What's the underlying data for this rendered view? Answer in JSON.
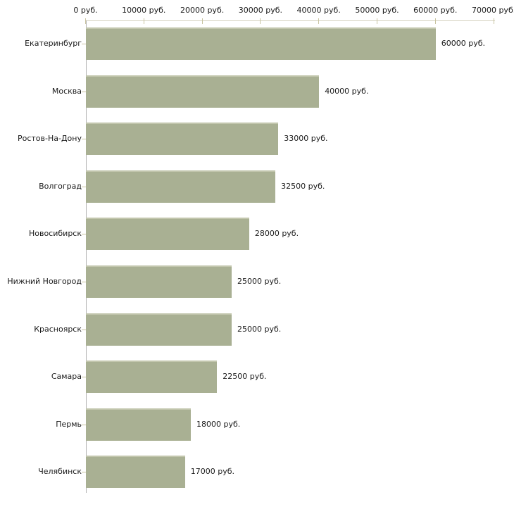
{
  "chart_data": {
    "type": "bar",
    "orientation": "horizontal",
    "unit": "руб.",
    "categories": [
      "Екатеринбург",
      "Москва",
      "Ростов-На-Дону",
      "Волгоград",
      "Новосибирск",
      "Нижний Новгород",
      "Красноярск",
      "Самара",
      "Пермь",
      "Челябинск"
    ],
    "values": [
      60000,
      40000,
      33000,
      32500,
      28000,
      25000,
      25000,
      22500,
      18000,
      17000
    ],
    "value_labels": [
      "60000 руб.",
      "40000 руб.",
      "33000 руб.",
      "32500 руб.",
      "28000 руб.",
      "25000 руб.",
      "25000 руб.",
      "22500 руб.",
      "18000 руб.",
      "17000 руб."
    ],
    "x_axis": {
      "position": "top",
      "min": 0,
      "max": 70000,
      "step": 10000,
      "tick_labels": [
        "0 руб.",
        "10000 руб.",
        "20000 руб.",
        "30000 руб.",
        "40000 руб.",
        "50000 руб.",
        "60000 руб.",
        "70000 руб."
      ]
    },
    "legend": null,
    "grid": "top-axis-line-only",
    "colors": {
      "bar_fill": "#a9b093",
      "bar_top_highlight": "#c2c6ad",
      "axis_line_vertical": "#b3b3b3",
      "axis_line_horizontal": "#d6d3c1",
      "tick_mark": "#c9c4a1",
      "text": "#1a1a1a",
      "background": "#ffffff"
    }
  }
}
